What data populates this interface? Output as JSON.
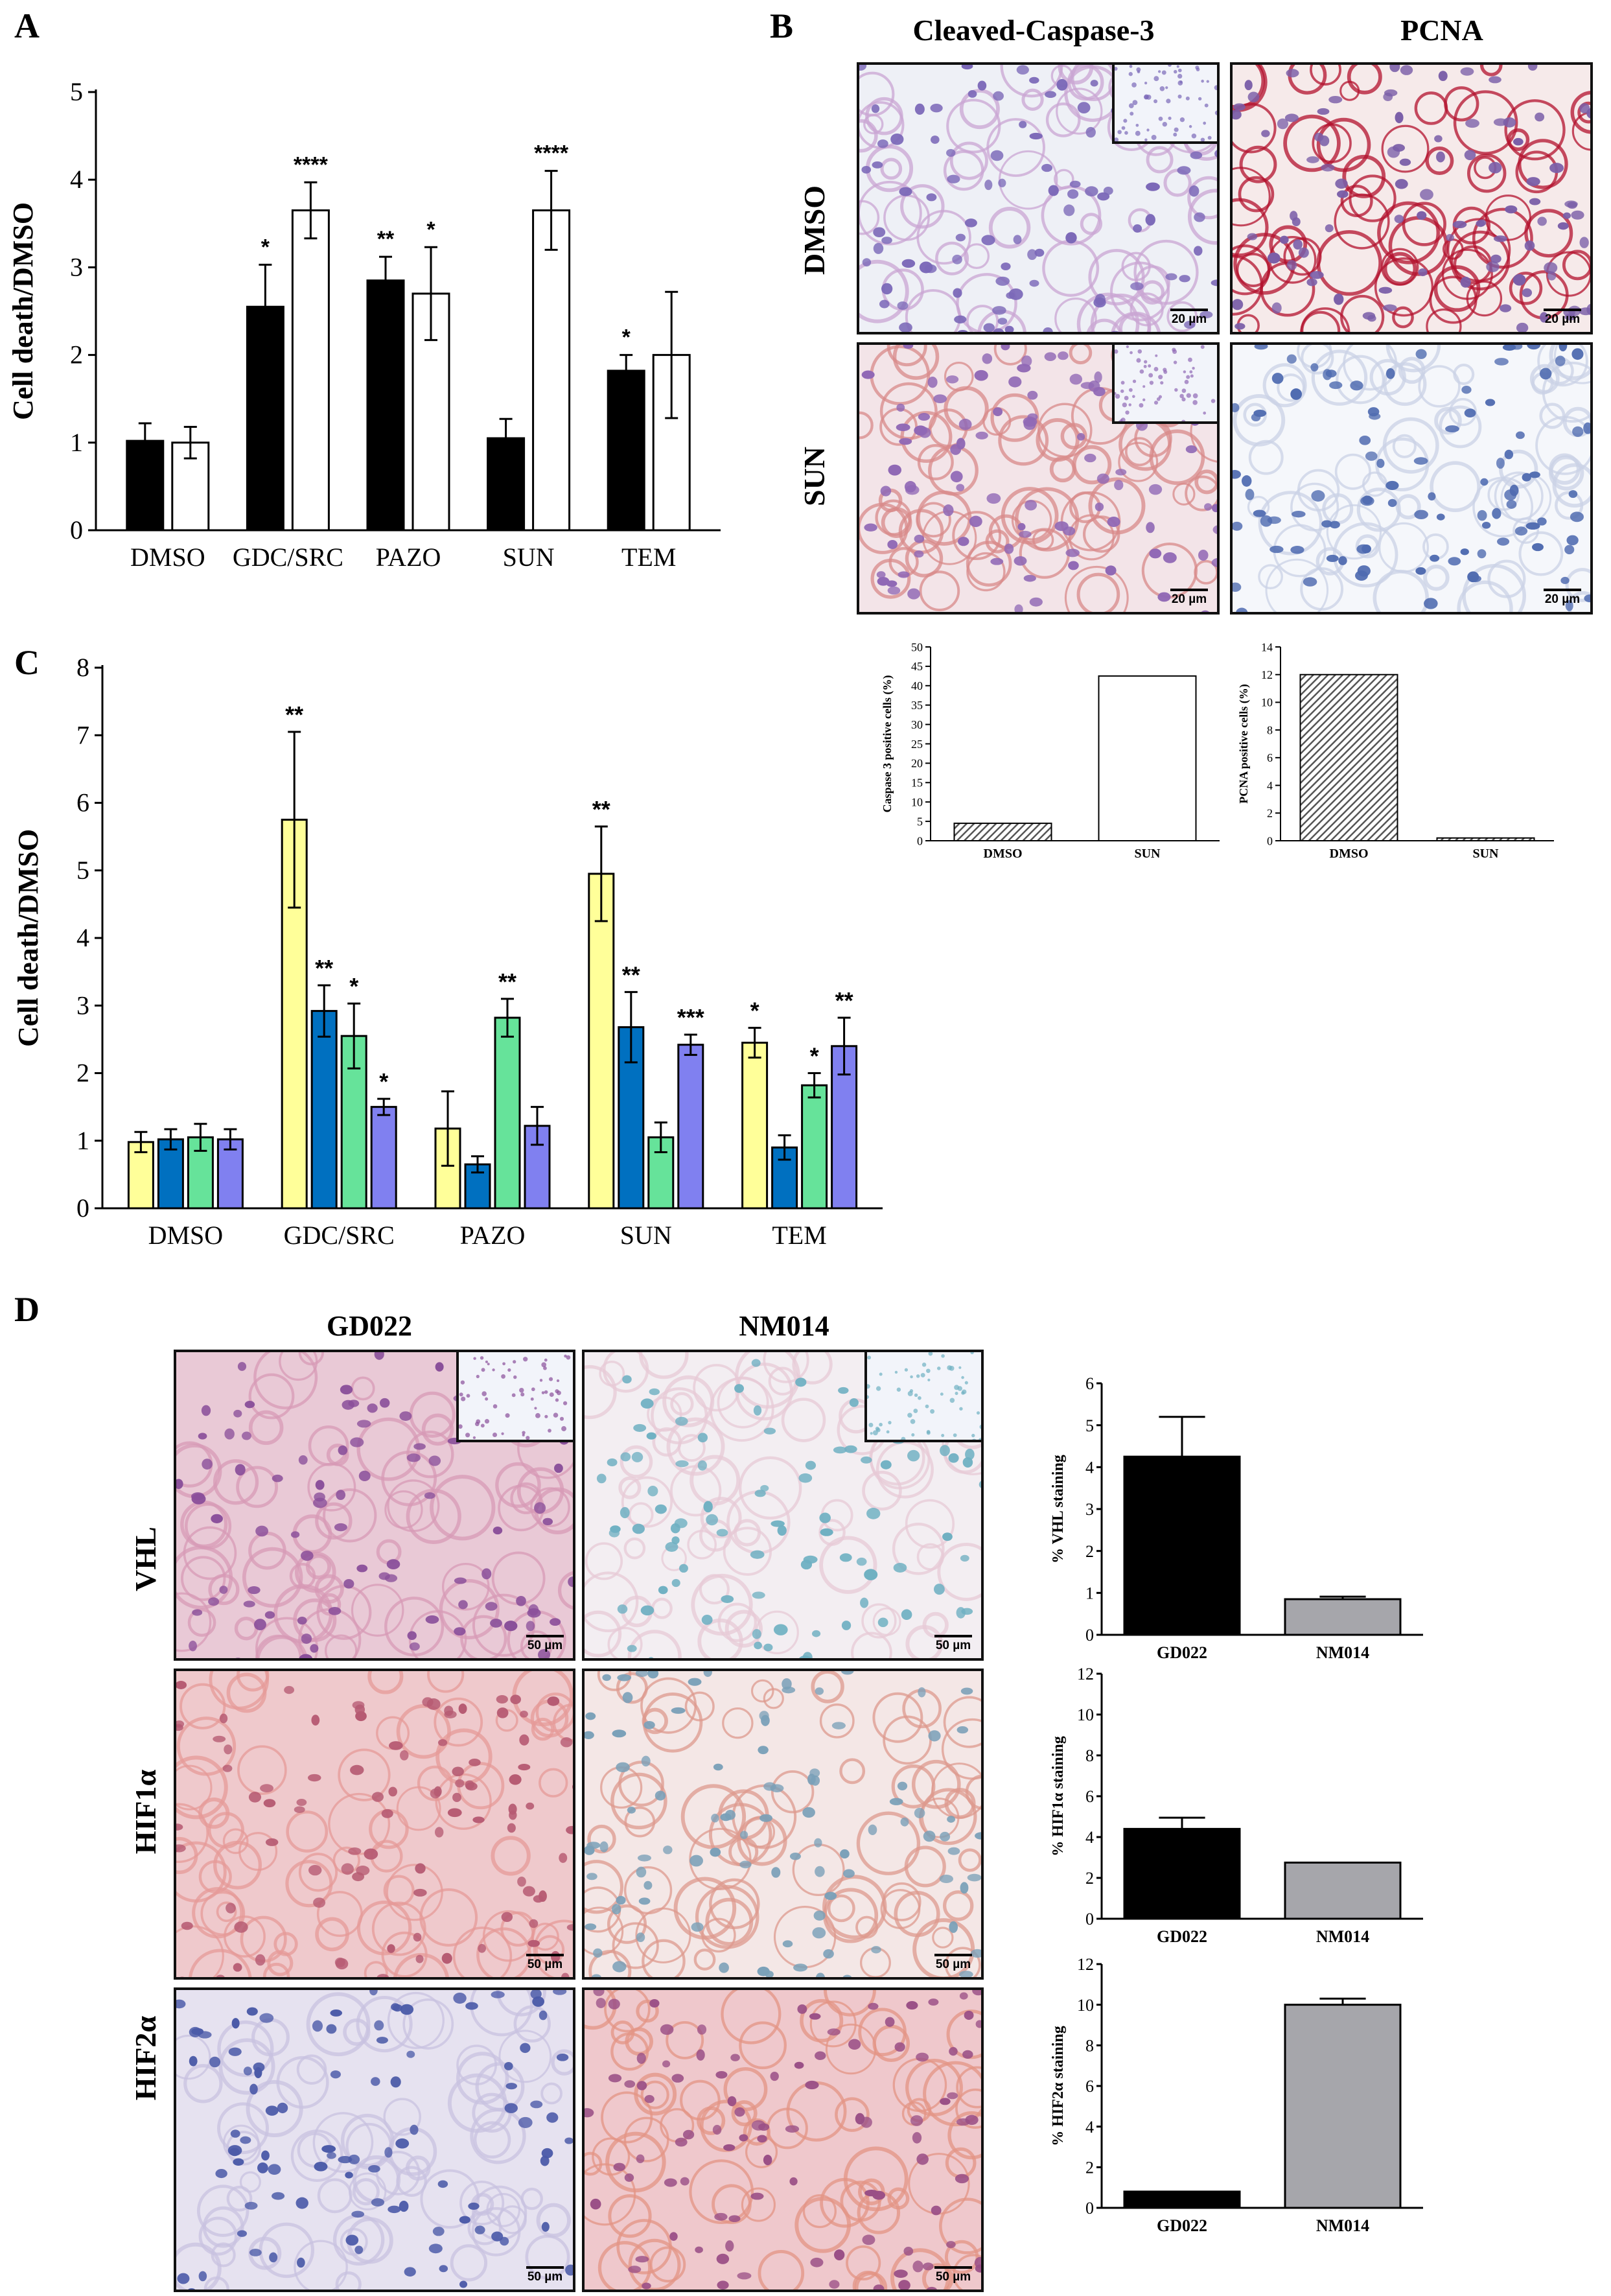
{
  "panels": {
    "A": "A",
    "B": "B",
    "C": "C",
    "D": "D"
  },
  "colors": {
    "black": "#000000",
    "white": "#ffffff",
    "yellow": "#ffff99",
    "blue": "#0070c0",
    "green": "#66e39a",
    "purple": "#8080f0",
    "grey": "#a6a6ab"
  },
  "panelB": {
    "col_titles": [
      "Cleaved-Caspase-3",
      "PCNA"
    ],
    "row_labels": [
      "DMSO",
      "SUN"
    ],
    "scale_label": "20 µm"
  },
  "panelD": {
    "col_titles": [
      "GD022",
      "NM014"
    ],
    "row_labels": [
      "VHL",
      "HIF1α",
      "HIF2α"
    ],
    "scale_label": "50 µm"
  },
  "chart_data": [
    {
      "id": "A",
      "type": "bar",
      "xlabel": "",
      "ylabel": "Cell death/DMSO",
      "ylim": [
        0,
        5
      ],
      "yticks": [
        0,
        1,
        2,
        3,
        4,
        5
      ],
      "categories": [
        "DMSO",
        "GDC/SRC",
        "PAZO",
        "SUN",
        "TEM"
      ],
      "series": [
        {
          "name": "series 1",
          "color": "#000000",
          "values": [
            1.02,
            2.55,
            2.85,
            1.05,
            1.82
          ],
          "errors": [
            0.2,
            0.48,
            0.27,
            0.22,
            0.18
          ],
          "stars": [
            "",
            "*",
            "**",
            "",
            "*"
          ]
        },
        {
          "name": "series 2",
          "color": "#ffffff",
          "values": [
            1.0,
            3.65,
            2.7,
            3.65,
            2.0
          ],
          "errors": [
            0.18,
            0.32,
            0.53,
            0.45,
            0.72
          ],
          "stars": [
            "",
            "****",
            "*",
            "****",
            ""
          ]
        }
      ]
    },
    {
      "id": "C",
      "type": "bar",
      "xlabel": "",
      "ylabel": "Cell death/DMSO",
      "ylim": [
        0,
        8
      ],
      "yticks": [
        0,
        1,
        2,
        3,
        4,
        5,
        6,
        7,
        8
      ],
      "categories": [
        "DMSO",
        "GDC/SRC",
        "PAZO",
        "SUN",
        "TEM"
      ],
      "series": [
        {
          "name": "series 1",
          "color": "#ffff99",
          "values": [
            0.98,
            5.75,
            1.18,
            4.95,
            2.45
          ],
          "errors": [
            0.15,
            1.3,
            0.55,
            0.7,
            0.22
          ],
          "stars": [
            "",
            "**",
            "",
            "**",
            "*"
          ]
        },
        {
          "name": "series 2",
          "color": "#0070c0",
          "values": [
            1.02,
            2.92,
            0.65,
            2.68,
            0.9
          ],
          "errors": [
            0.15,
            0.38,
            0.12,
            0.52,
            0.18
          ],
          "stars": [
            "",
            "**",
            "",
            "**",
            ""
          ]
        },
        {
          "name": "series 3",
          "color": "#66e39a",
          "values": [
            1.05,
            2.55,
            2.82,
            1.05,
            1.82
          ],
          "errors": [
            0.2,
            0.48,
            0.28,
            0.22,
            0.18
          ],
          "stars": [
            "",
            "*",
            "**",
            "",
            "*"
          ]
        },
        {
          "name": "series 4",
          "color": "#8080f0",
          "values": [
            1.02,
            1.5,
            1.22,
            2.42,
            2.4
          ],
          "errors": [
            0.15,
            0.12,
            0.28,
            0.15,
            0.42
          ],
          "stars": [
            "",
            "*",
            "",
            "***",
            "**"
          ]
        }
      ]
    },
    {
      "id": "B-caspase",
      "type": "bar",
      "ylabel": "Caspase 3 positive cells (%)",
      "ylim": [
        0,
        50
      ],
      "yticks": [
        0,
        5,
        10,
        15,
        20,
        25,
        30,
        35,
        40,
        45,
        50
      ],
      "categories": [
        "DMSO",
        "SUN"
      ],
      "values": [
        4.5,
        42.5
      ],
      "fills": [
        "hatch",
        "#ffffff"
      ]
    },
    {
      "id": "B-pcna",
      "type": "bar",
      "ylabel": "PCNA positive cells (%)",
      "ylim": [
        0,
        14
      ],
      "yticks": [
        0,
        2,
        4,
        6,
        8,
        10,
        12,
        14
      ],
      "categories": [
        "DMSO",
        "SUN"
      ],
      "values": [
        12.0,
        0.2
      ],
      "fills": [
        "hatch",
        "hatch"
      ]
    },
    {
      "id": "D-VHL",
      "type": "bar",
      "ylabel": "% VHL staining",
      "ylim": [
        0,
        6
      ],
      "yticks": [
        0,
        1,
        2,
        3,
        4,
        5,
        6
      ],
      "categories": [
        "GD022",
        "NM014"
      ],
      "values": [
        4.25,
        0.85
      ],
      "errors": [
        0.95,
        0.06
      ],
      "fills": [
        "#000000",
        "#a6a6ab"
      ]
    },
    {
      "id": "D-HIF1a",
      "type": "bar",
      "ylabel": "% HIF1α staining",
      "ylim": [
        0,
        12
      ],
      "yticks": [
        0,
        2,
        4,
        6,
        8,
        10,
        12
      ],
      "categories": [
        "GD022",
        "NM014"
      ],
      "values": [
        4.4,
        2.75
      ],
      "errors": [
        0.55,
        0.0
      ],
      "fills": [
        "#000000",
        "#a6a6ab"
      ]
    },
    {
      "id": "D-HIF2a",
      "type": "bar",
      "ylabel": "% HIF2α staining",
      "ylim": [
        0,
        12
      ],
      "yticks": [
        0,
        2,
        4,
        6,
        8,
        10,
        12
      ],
      "categories": [
        "GD022",
        "NM014"
      ],
      "values": [
        0.8,
        10.0
      ],
      "errors": [
        0.0,
        0.3
      ],
      "fills": [
        "#000000",
        "#a6a6ab"
      ]
    }
  ]
}
